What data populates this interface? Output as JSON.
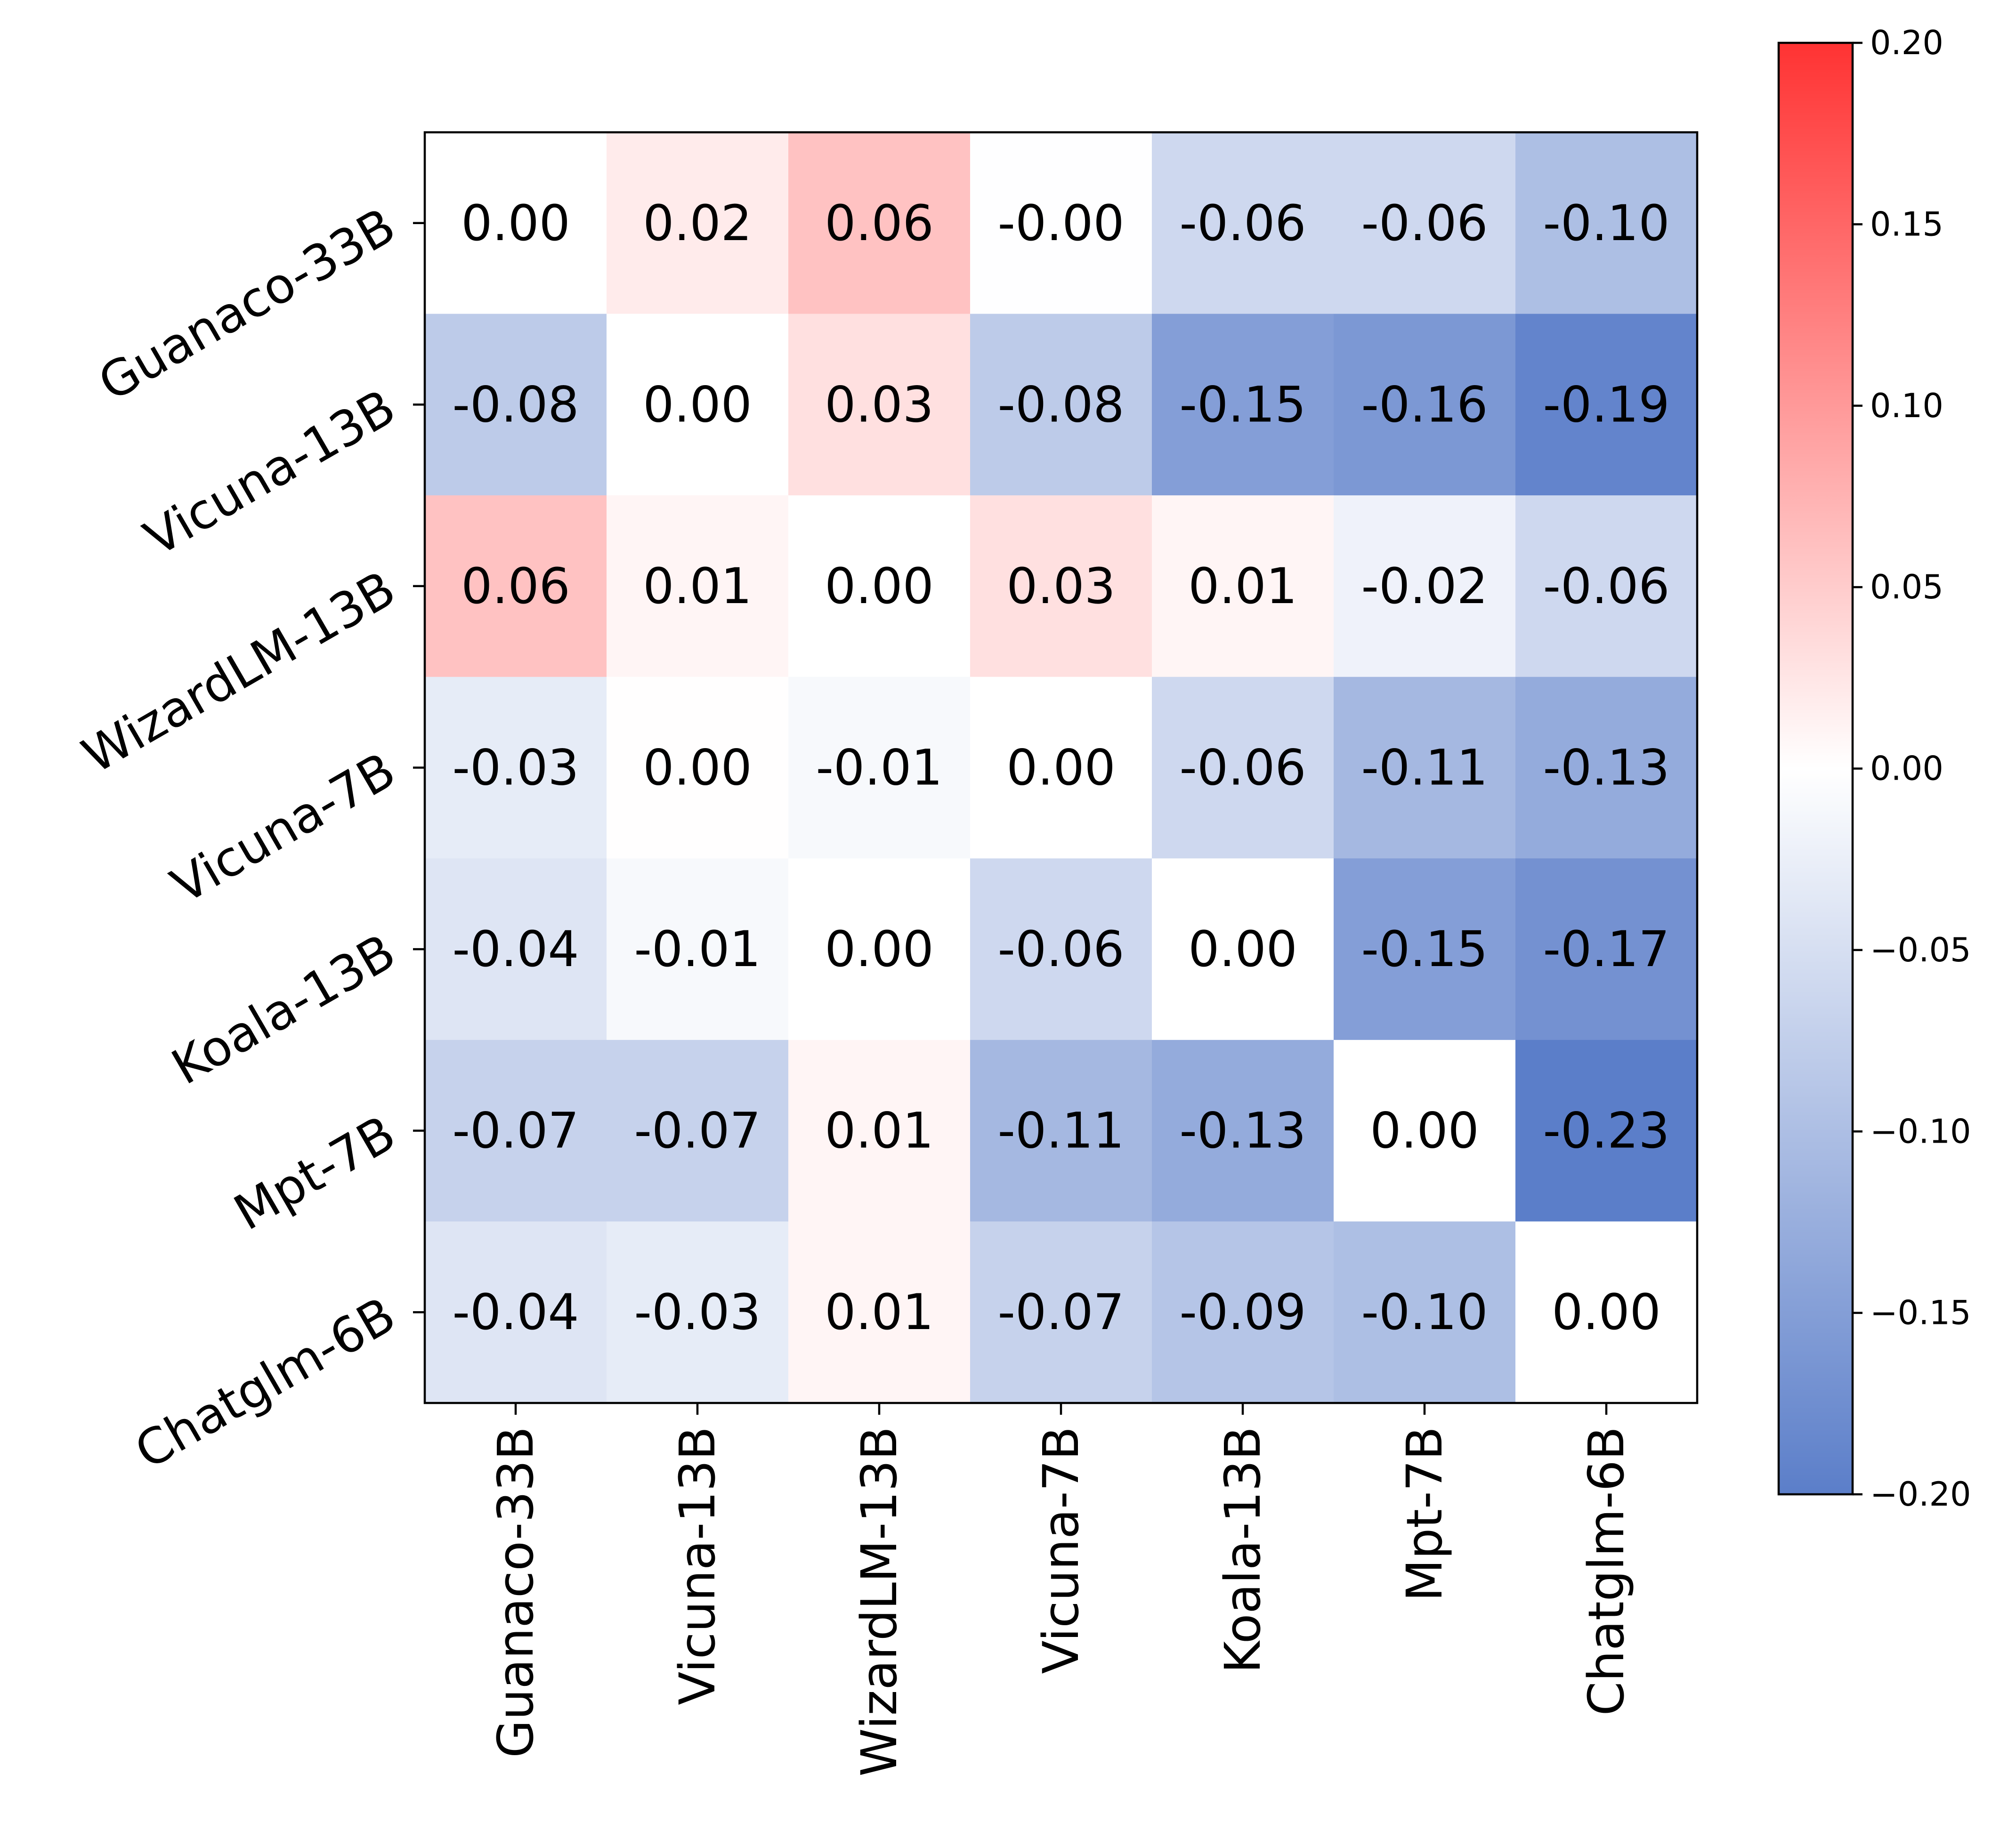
{
  "chart_data": {
    "type": "heatmap",
    "title": "",
    "xlabel": "",
    "ylabel": "",
    "row_labels": [
      "Guanaco-33B",
      "Vicuna-13B",
      "WizardLM-13B",
      "Vicuna-7B",
      "Koala-13B",
      "Mpt-7B",
      "Chatglm-6B"
    ],
    "col_labels": [
      "Guanaco-33B",
      "Vicuna-13B",
      "WizardLM-13B",
      "Vicuna-7B",
      "Koala-13B",
      "Mpt-7B",
      "Chatglm-6B"
    ],
    "values": [
      [
        0.0,
        0.02,
        0.06,
        -0.001,
        -0.06,
        -0.06,
        -0.1
      ],
      [
        -0.08,
        0.0,
        0.03,
        -0.08,
        -0.15,
        -0.16,
        -0.19
      ],
      [
        0.06,
        0.01,
        0.0,
        0.03,
        0.01,
        -0.02,
        -0.06
      ],
      [
        -0.03,
        0.001,
        -0.01,
        0.0,
        -0.06,
        -0.11,
        -0.13
      ],
      [
        -0.04,
        -0.01,
        0.0,
        -0.06,
        0.0,
        -0.15,
        -0.17
      ],
      [
        -0.07,
        -0.07,
        0.01,
        -0.11,
        -0.13,
        0.0,
        -0.23
      ],
      [
        -0.04,
        -0.03,
        0.01,
        -0.07,
        -0.09,
        -0.1,
        0.0
      ]
    ],
    "cell_text": [
      [
        "0.00",
        "0.02",
        "0.06",
        "-0.00",
        "-0.06",
        "-0.06",
        "-0.10"
      ],
      [
        "-0.08",
        "0.00",
        "0.03",
        "-0.08",
        "-0.15",
        "-0.16",
        "-0.19"
      ],
      [
        "0.06",
        "0.01",
        "0.00",
        "0.03",
        "0.01",
        "-0.02",
        "-0.06"
      ],
      [
        "-0.03",
        "0.00",
        "-0.01",
        "0.00",
        "-0.06",
        "-0.11",
        "-0.13"
      ],
      [
        "-0.04",
        "-0.01",
        "0.00",
        "-0.06",
        "0.00",
        "-0.15",
        "-0.17"
      ],
      [
        "-0.07",
        "-0.07",
        "0.01",
        "-0.11",
        "-0.13",
        "0.00",
        "-0.23"
      ],
      [
        "-0.04",
        "-0.03",
        "0.01",
        "-0.07",
        "-0.09",
        "-0.10",
        "0.00"
      ]
    ],
    "colorbar": {
      "vmin": -0.2,
      "vmax": 0.2,
      "ticks": [
        0.2,
        0.15,
        0.1,
        0.05,
        0.0,
        -0.05,
        -0.1,
        -0.15,
        -0.2
      ],
      "tick_labels": [
        "0.20",
        "0.15",
        "0.10",
        "0.05",
        "0.00",
        "−0.05",
        "−0.10",
        "−0.15",
        "−0.20"
      ],
      "low_color": "#5b7ec9",
      "mid_color": "#ffffff",
      "high_color": "#ff3333"
    }
  }
}
